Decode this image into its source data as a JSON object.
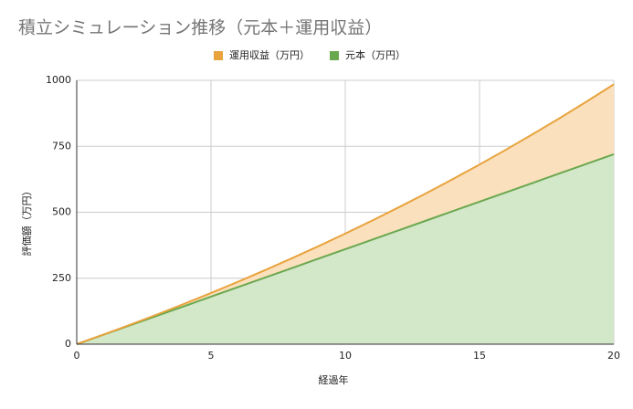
{
  "chart_data": {
    "type": "stacked-area",
    "title": "積立シミュレーション推移（元本＋運用収益）",
    "x_label": "経過年",
    "y_label": "評価額（万円）",
    "x": [
      0,
      1,
      2,
      3,
      4,
      5,
      6,
      7,
      8,
      9,
      10,
      11,
      12,
      13,
      14,
      15,
      16,
      17,
      18,
      19,
      20
    ],
    "series": [
      {
        "name": "運用収益（万円）",
        "color": "#e8a33d",
        "fill": "#fbe0bd",
        "values": [
          0,
          0.5,
          2.1,
          4.9,
          8.8,
          13.9,
          20.3,
          28.0,
          37.0,
          47.4,
          59.2,
          72.5,
          87.2,
          103.5,
          121.4,
          140.9,
          162.1,
          185.1,
          209.8,
          236.4,
          264.9
        ]
      },
      {
        "name": "元本（万円）",
        "color": "#6aa84f",
        "fill": "#d3e7c9",
        "values": [
          0,
          36,
          72,
          108,
          144,
          180,
          216,
          252,
          288,
          324,
          360,
          396,
          432,
          468,
          504,
          540,
          576,
          612,
          648,
          684,
          720
        ]
      }
    ],
    "stack_order": [
      1,
      0
    ],
    "xlim": [
      0,
      20
    ],
    "xticks": [
      0,
      5,
      10,
      15,
      20
    ],
    "ylim": [
      0,
      1000
    ],
    "yticks": [
      0,
      250,
      500,
      750,
      1000
    ],
    "grid": true,
    "legend": "top"
  }
}
